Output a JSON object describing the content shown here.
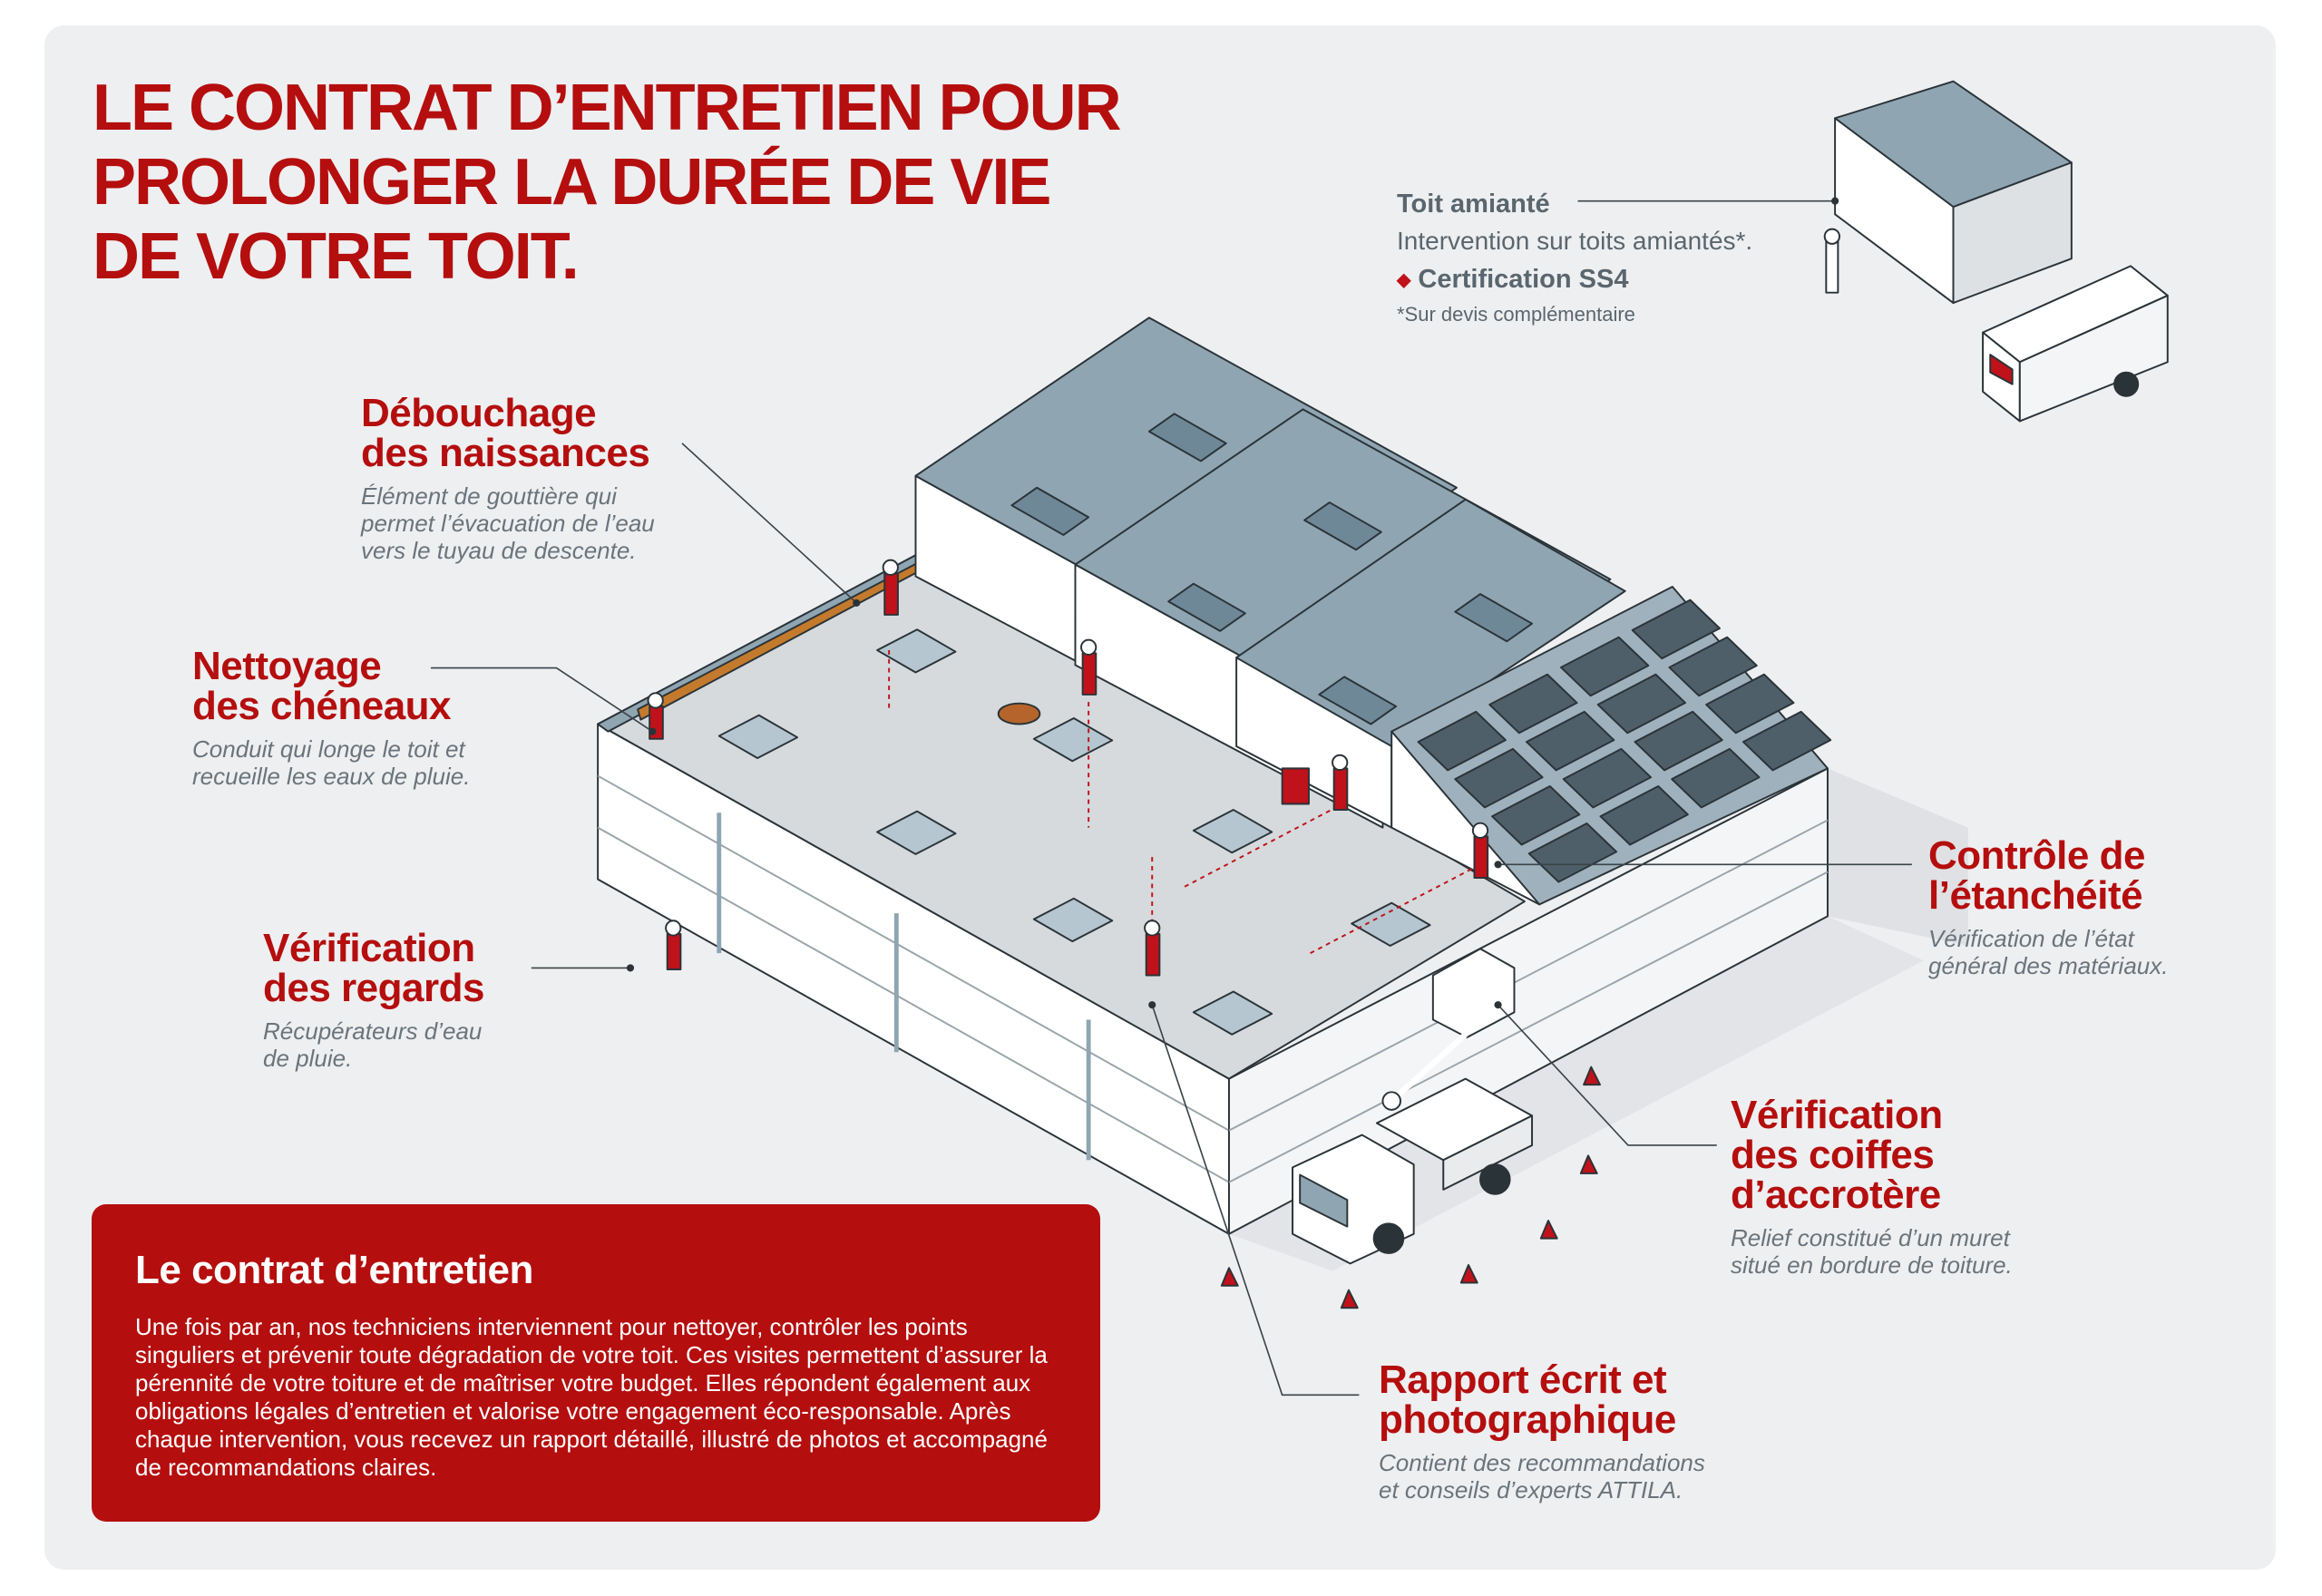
{
  "title": {
    "lines": [
      "LE CONTRAT D’ENTRETIEN POUR",
      "PROLONGER LA DURÉE DE  VIE",
      "DE VOTRE TOIT."
    ]
  },
  "amiante": {
    "heading": "Toit amianté",
    "text": "Intervention sur toits amiantés*.",
    "certification": "Certification SS4",
    "note": "*Sur devis complémentaire"
  },
  "callouts": {
    "debouchage": {
      "title": [
        "Débouchage",
        "des naissances"
      ],
      "desc": [
        "Élément de gouttière qui",
        "permet l’évacuation de l’eau",
        "vers le tuyau de descente."
      ]
    },
    "nettoyage": {
      "title": [
        "Nettoyage",
        "des chéneaux"
      ],
      "desc": [
        "Conduit qui longe le toit et",
        "recueille les eaux de pluie."
      ]
    },
    "regards": {
      "title": [
        "Vérification",
        "des regards"
      ],
      "desc": [
        "Récupérateurs d’eau",
        "de pluie."
      ]
    },
    "etancheite": {
      "title": [
        "Contrôle de",
        "l’étanchéité"
      ],
      "desc": [
        "Vérification de l’état",
        "général des matériaux."
      ]
    },
    "coiffes": {
      "title": [
        "Vérification",
        "des coiffes",
        "d’accrotère"
      ],
      "desc": [
        "Relief constitué d’un muret",
        "situé en bordure de toiture."
      ]
    },
    "rapport": {
      "title": [
        "Rapport écrit et",
        "photographique"
      ],
      "desc": [
        "Contient des recommandations",
        "et conseils d’experts ATTILA."
      ]
    }
  },
  "contract_box": {
    "title": "Le contrat d’entretien",
    "body": "Une fois par an, nos techniciens interviennent pour nettoyer, contrôler les points singuliers et prévenir toute dégradation de votre toit. Ces visites permettent d’assurer la pérennité de votre toiture et de maîtriser votre budget. Elles répondent également aux obligations légales d’entretien et valorise votre engagement éco-responsable. Après chaque intervention, vous recevez un rapport détaillé, illustré de photos et accompagné de recommandations claires."
  },
  "colors": {
    "brand_red": "#b50e0e",
    "background": "#eeeff1",
    "roof_blue": "#8fa5b2",
    "text_gray": "#6a747b"
  }
}
